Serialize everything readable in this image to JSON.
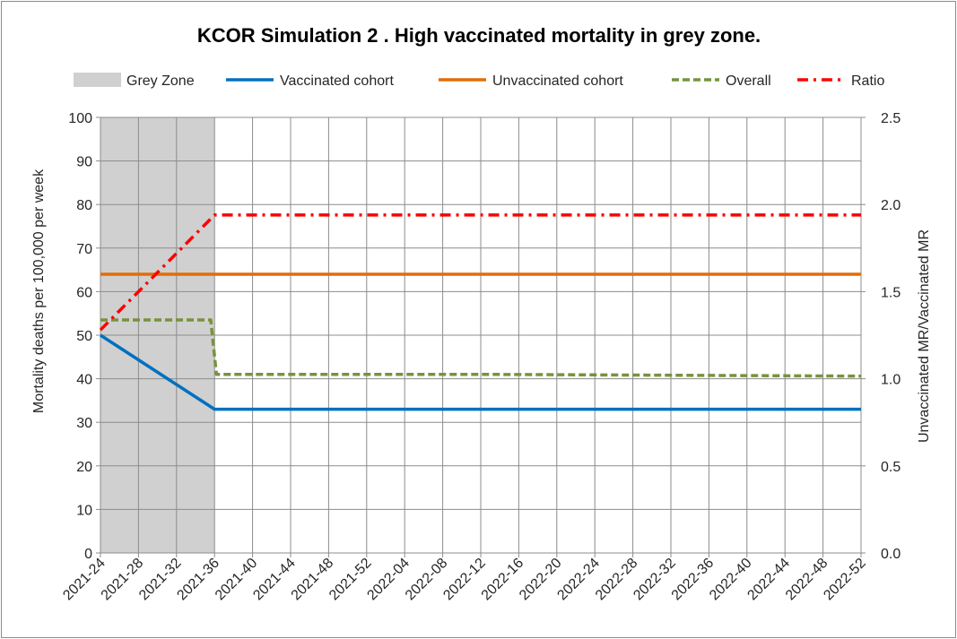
{
  "chart_data": {
    "type": "line",
    "title": "KCOR Simulation 2 . High vaccinated mortality in grey zone.",
    "ylabel": "Mortality deaths per 100,000 per week",
    "y2label": "Unvaccinated MR/Vaccinated MR",
    "ylim": [
      0,
      100
    ],
    "y2lim": [
      0.0,
      2.5
    ],
    "yticks": [
      "0",
      "10",
      "20",
      "30",
      "40",
      "50",
      "60",
      "70",
      "80",
      "90",
      "100"
    ],
    "y2ticks": [
      "0.0",
      "0.5",
      "1.0",
      "1.5",
      "2.0",
      "2.5"
    ],
    "grid": true,
    "legend_position": "top",
    "x_tick_labels": [
      "2021-24",
      "2021-28",
      "2021-32",
      "2021-36",
      "2021-40",
      "2021-44",
      "2021-48",
      "2021-52",
      "2022-04",
      "2022-08",
      "2022-12",
      "2022-16",
      "2022-20",
      "2022-24",
      "2022-28",
      "2022-32",
      "2022-36",
      "2022-40",
      "2022-44",
      "2022-48",
      "2022-52"
    ],
    "x_range_weeks": [
      0,
      80
    ],
    "grey_zone": {
      "name": "Grey Zone",
      "color": "#d0d0d0",
      "start_week": 0,
      "end_week": 12
    },
    "series": [
      {
        "name": "Vaccinated cohort",
        "axis": "left",
        "color": "#0070c0",
        "style": "solid",
        "points": [
          [
            0,
            50
          ],
          [
            12,
            33
          ],
          [
            80,
            33
          ]
        ]
      },
      {
        "name": "Unvaccinated cohort",
        "axis": "left",
        "color": "#e36c09",
        "style": "solid",
        "points": [
          [
            0,
            64
          ],
          [
            80,
            64
          ]
        ]
      },
      {
        "name": "Overall",
        "axis": "left",
        "color": "#77933c",
        "style": "dash",
        "points": [
          [
            0,
            53.5
          ],
          [
            11.6,
            53.5
          ],
          [
            12.2,
            41
          ],
          [
            40,
            41
          ],
          [
            80,
            40.6
          ]
        ]
      },
      {
        "name": "Ratio",
        "axis": "right",
        "color": "#ff0000",
        "style": "dashdot",
        "points": [
          [
            0,
            1.28
          ],
          [
            12,
            1.94
          ],
          [
            80,
            1.94
          ]
        ]
      }
    ]
  }
}
